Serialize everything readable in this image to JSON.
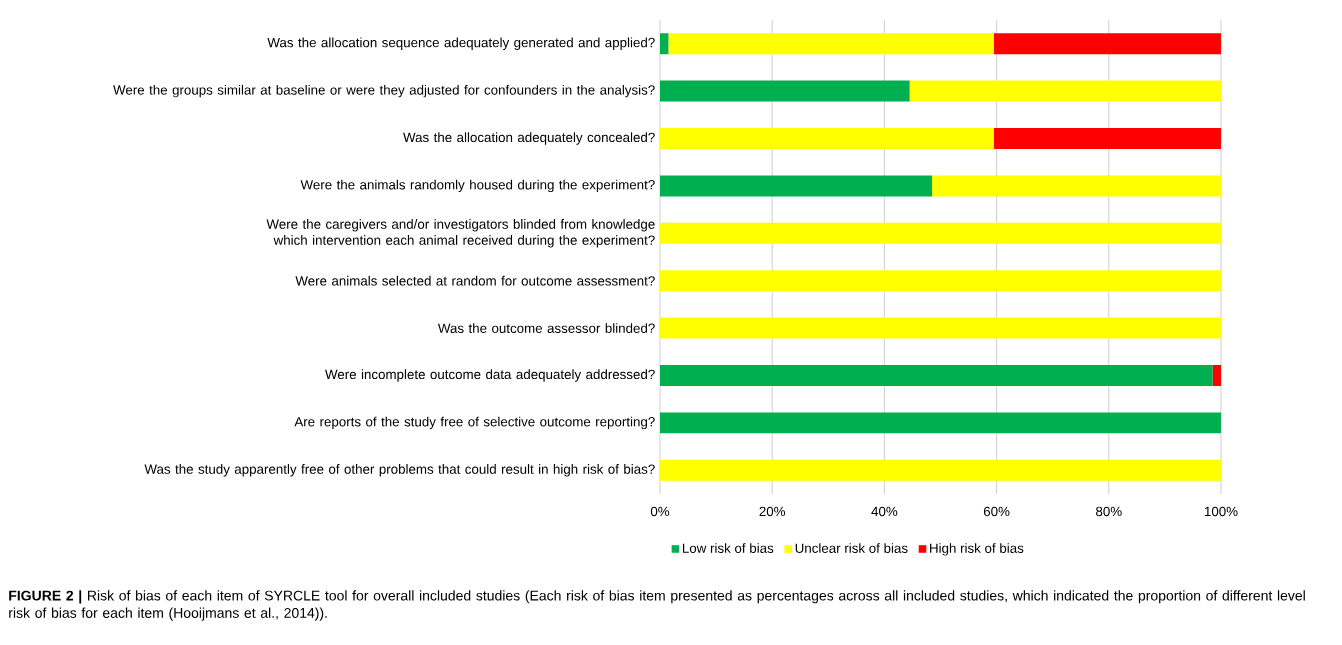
{
  "chart_data": {
    "type": "bar",
    "orientation": "horizontal",
    "stacked": true,
    "categories": [
      "Was the allocation sequence adequately generated and applied?",
      "Were the groups similar at baseline or were they adjusted for confounders in the analysis?",
      "Was the allocation adequately concealed?",
      "Were the animals randomly housed during the experiment?",
      "Were the caregivers and/or investigators blinded from knowledge which intervention each animal received during the experiment?",
      "Were animals selected at random for outcome assessment?",
      "Was the outcome assessor blinded?",
      "Were incomplete outcome data adequately addressed?",
      "Are reports of the study free of selective outcome reporting?",
      "Was the study apparently free of other problems that could result in high risk of bias?"
    ],
    "series": [
      {
        "name": "Low risk of bias",
        "color": "#00b050",
        "values": [
          1.5,
          44.5,
          0,
          48.5,
          0,
          0,
          0,
          98.5,
          100,
          0
        ]
      },
      {
        "name": "Unclear risk of bias",
        "color": "#ffff00",
        "values": [
          58,
          55.5,
          59.5,
          51.5,
          100,
          100,
          100,
          0,
          0,
          100
        ]
      },
      {
        "name": "High risk of bias",
        "color": "#ff0000",
        "values": [
          40.5,
          0,
          40.5,
          0,
          0,
          0,
          0,
          1.5,
          0,
          0
        ]
      }
    ],
    "xlim": [
      0,
      100
    ],
    "xticks": [
      {
        "value": 0,
        "label": "0%"
      },
      {
        "value": 20,
        "label": "20%"
      },
      {
        "value": 40,
        "label": "40%"
      },
      {
        "value": 60,
        "label": "60%"
      },
      {
        "value": 80,
        "label": "80%"
      },
      {
        "value": 100,
        "label": "100%"
      }
    ],
    "grid": "x",
    "legend": "bottom",
    "annotations": [
      "**FIGURE 2 |** Risk of bias of each item of SYRCLE tool for overall included studies (Each risk of bias item presented as percentages across all included studies, which indicated the proportion of different level risk of bias for each item (Hooijmans et al., 2014))."
    ]
  }
}
